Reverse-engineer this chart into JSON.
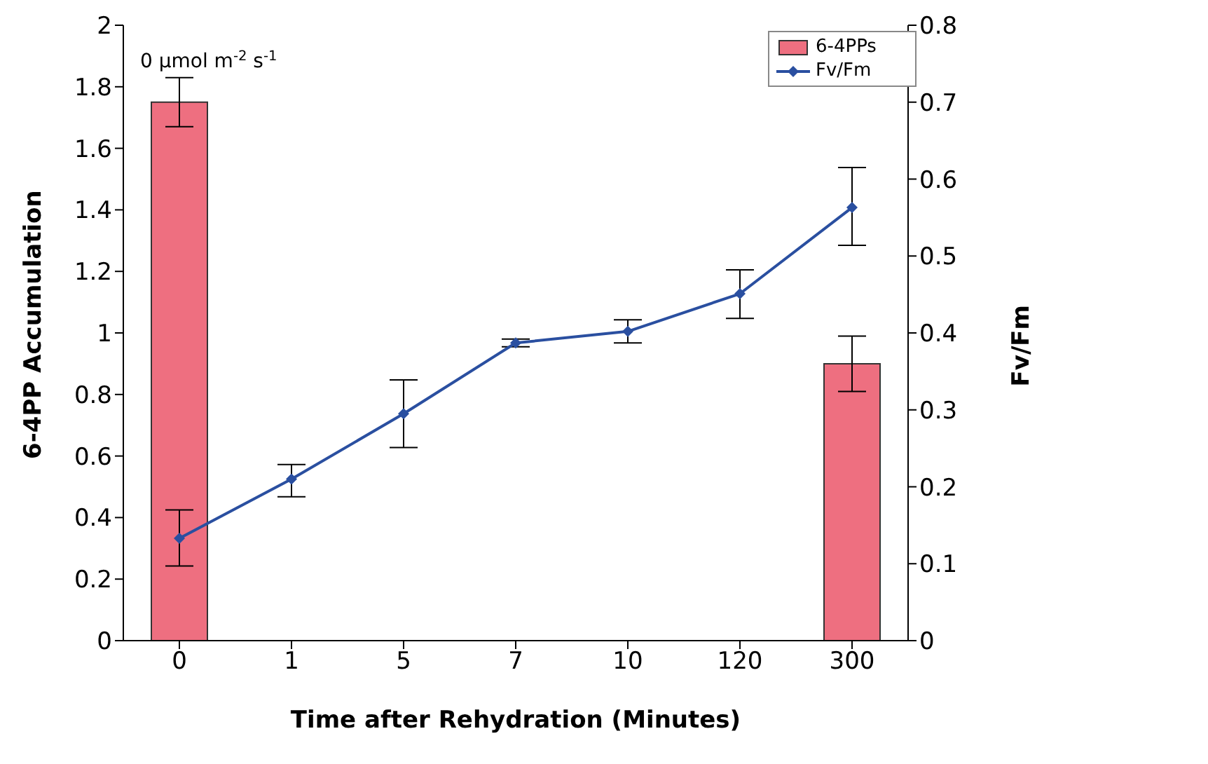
{
  "chart_data": {
    "type": "bar",
    "xlabel": "Time after Rehydration (Minutes)",
    "ylabel": "6-4PP Accumulation",
    "y2label": "Fv/Fm",
    "categories": [
      "0",
      "1",
      "5",
      "7",
      "10",
      "120",
      "300"
    ],
    "series": [
      {
        "name": "6-4PPs",
        "type": "bar",
        "color": "#ee6f80",
        "values": [
          1.75,
          null,
          null,
          null,
          null,
          null,
          0.9
        ],
        "errors": [
          0.08,
          null,
          null,
          null,
          null,
          null,
          0.09
        ]
      },
      {
        "name": "Fv/Fm",
        "type": "line",
        "axis": "y2",
        "color": "#2a4fa0",
        "values": [
          0.133,
          0.21,
          0.295,
          0.387,
          0.402,
          0.451,
          0.563
        ],
        "errors": [
          [
            0.097,
            0.17
          ],
          [
            0.187,
            0.229
          ],
          [
            0.251,
            0.339
          ],
          [
            0.382,
            0.392
          ],
          [
            0.387,
            0.417
          ],
          [
            0.419,
            0.482
          ],
          [
            0.514,
            0.615
          ]
        ]
      }
    ],
    "ylim": [
      0,
      2
    ],
    "yticks": [
      0,
      0.2,
      0.4,
      0.6,
      0.8,
      1,
      1.2,
      1.4,
      1.6,
      1.8,
      2
    ],
    "y2lim": [
      0,
      0.8
    ],
    "y2ticks": [
      0,
      0.1,
      0.2,
      0.3,
      0.4,
      0.5,
      0.6,
      0.7,
      0.8
    ],
    "annotations": [
      "0 μmol m$^{-2}$ s$^{-1}$"
    ],
    "legend": "top right",
    "grid": false,
    "marker": "diamond"
  }
}
